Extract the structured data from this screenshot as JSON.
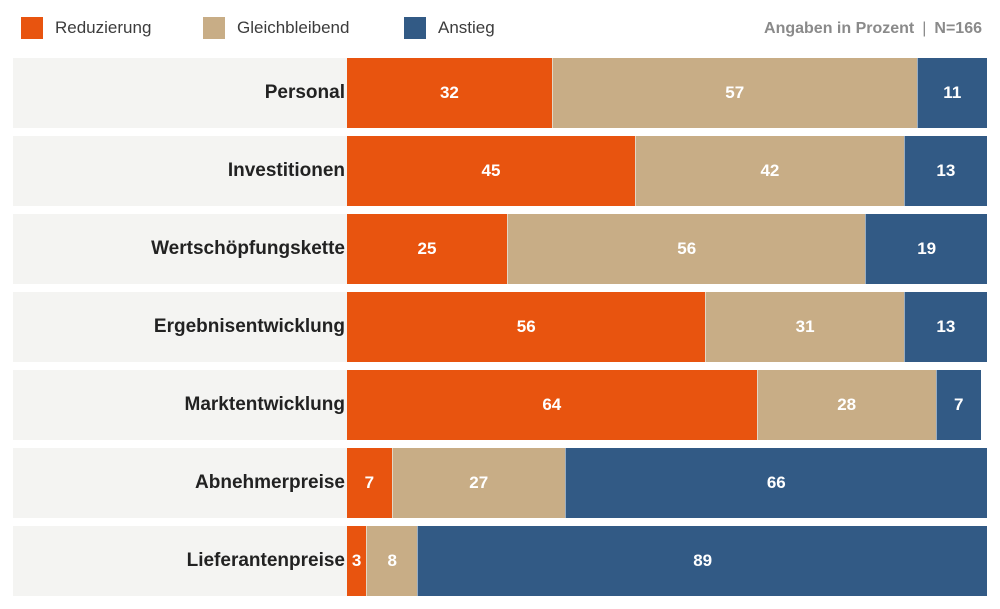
{
  "legend": {
    "reduzierung": "Reduzierung",
    "gleichbleibend": "Gleichbleibend",
    "anstieg": "Anstieg"
  },
  "meta": {
    "unit": "Angaben in Prozent",
    "separator": "|",
    "n": "N=166"
  },
  "colors": {
    "reduzierung": "#e8540f",
    "gleichbleibend": "#c8ad86",
    "anstieg": "#325a85"
  },
  "chart_data": {
    "type": "bar",
    "orientation": "horizontal",
    "stacked": true,
    "categories": [
      "Personal",
      "Investitionen",
      "Wertschöpfungskette",
      "Ergebnisentwicklung",
      "Marktentwicklung",
      "Abnehmerpreise",
      "Lieferantenpreise"
    ],
    "series": [
      {
        "name": "Reduzierung",
        "values": [
          32,
          45,
          25,
          56,
          64,
          7,
          3
        ]
      },
      {
        "name": "Gleichbleibend",
        "values": [
          57,
          42,
          56,
          31,
          28,
          27,
          8
        ]
      },
      {
        "name": "Anstieg",
        "values": [
          11,
          13,
          19,
          13,
          7,
          66,
          89
        ]
      }
    ],
    "xlim": [
      0,
      100
    ],
    "grid": false,
    "legend_position": "top-left"
  }
}
